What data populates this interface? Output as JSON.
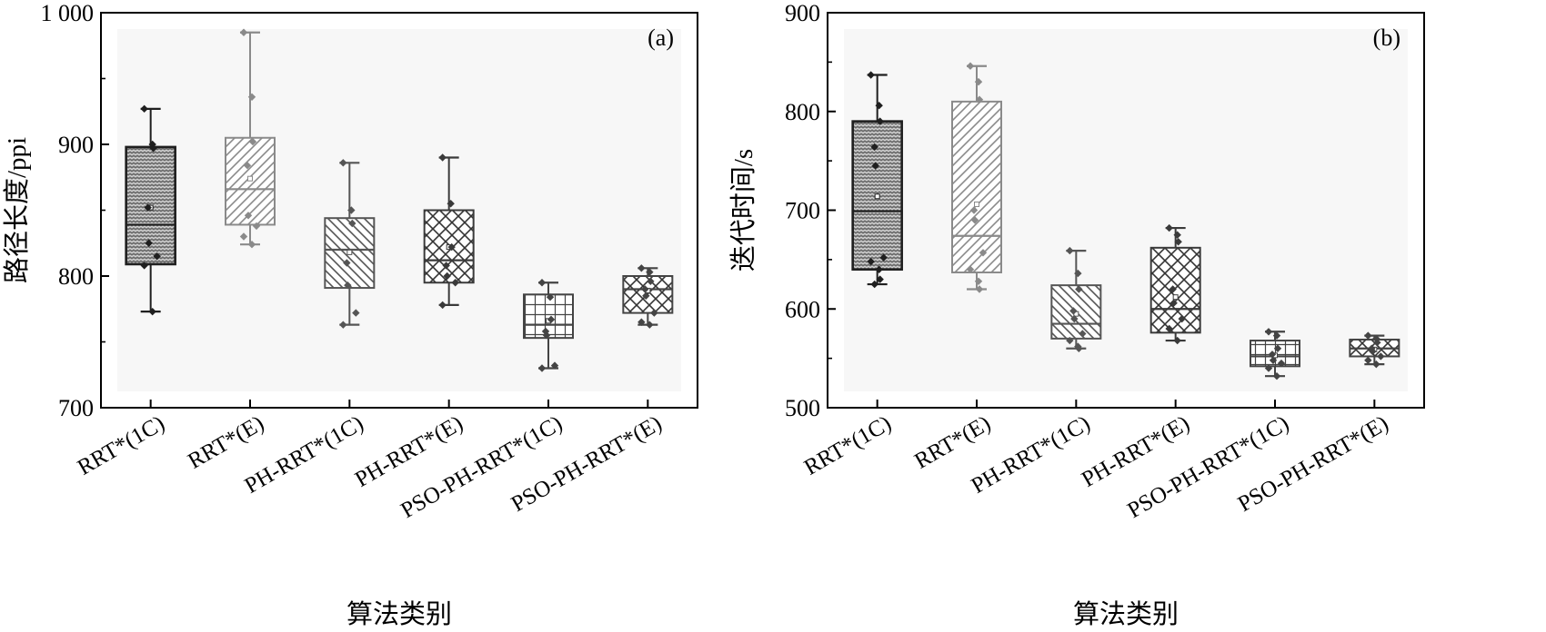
{
  "chart_data": [
    {
      "type": "box",
      "panel_label": "(a)",
      "xlabel": "算法类别",
      "ylabel": "路径长度/ppi",
      "ylim": [
        700,
        1000
      ],
      "yticks": [
        700,
        800,
        900,
        1000
      ],
      "ytick_labels": [
        "700",
        "800",
        "900",
        "1 000"
      ],
      "categories": [
        "RRT*(1C)",
        "RRT*(E)",
        "PH-RRT*(1C)",
        "PH-RRT*(E)",
        "PSO-PH-RRT*(1C)",
        "PSO-PH-RRT*(E)"
      ],
      "boxes": [
        {
          "whisker_low": 773,
          "q1": 809,
          "median": 839,
          "mean": 852,
          "q3": 898,
          "whisker_high": 927,
          "points": [
            927,
            900,
            897,
            852,
            825,
            815,
            808,
            773
          ],
          "pattern": "dots",
          "color": "#1f1f1f",
          "shade": true
        },
        {
          "whisker_low": 824,
          "q1": 839,
          "median": 866,
          "mean": 874,
          "q3": 905,
          "whisker_high": 985,
          "points": [
            985,
            936,
            902,
            884,
            846,
            838,
            830,
            824
          ],
          "pattern": "diag",
          "color": "#8a8a8a",
          "shade": false
        },
        {
          "whisker_low": 763,
          "q1": 791,
          "median": 820,
          "mean": 818,
          "q3": 844,
          "whisker_high": 886,
          "points": [
            886,
            850,
            840,
            810,
            793,
            772,
            763
          ],
          "pattern": "backdiag",
          "color": "#555555",
          "shade": false
        },
        {
          "whisker_low": 778,
          "q1": 795,
          "median": 812,
          "mean": 822,
          "q3": 850,
          "whisker_high": 890,
          "points": [
            890,
            855,
            822,
            808,
            800,
            795,
            778
          ],
          "pattern": "cross",
          "color": "#3a3a3a",
          "shade": false
        },
        {
          "whisker_low": 730,
          "q1": 753,
          "median": 763,
          "mean": 766,
          "q3": 786,
          "whisker_high": 795,
          "points": [
            795,
            784,
            767,
            758,
            755,
            732,
            730
          ],
          "pattern": "grid",
          "color": "#444444",
          "shade": false
        },
        {
          "whisker_low": 763,
          "q1": 772,
          "median": 790,
          "mean": 789,
          "q3": 800,
          "whisker_high": 806,
          "points": [
            806,
            803,
            796,
            790,
            785,
            772,
            765,
            763
          ],
          "pattern": "cross",
          "color": "#444444",
          "shade": false
        }
      ]
    },
    {
      "type": "box",
      "panel_label": "(b)",
      "xlabel": "算法类别",
      "ylabel": "迭代时间/s",
      "ylim": [
        500,
        900
      ],
      "yticks": [
        500,
        600,
        700,
        800,
        900
      ],
      "ytick_labels": [
        "500",
        "600",
        "700",
        "800",
        "900"
      ],
      "categories": [
        "RRT*(1C)",
        "RRT*(E)",
        "PH-RRT*(1C)",
        "PH-RRT*(E)",
        "PSO-PH-RRT*(1C)",
        "PSO-PH-RRT*(E)"
      ],
      "boxes": [
        {
          "whisker_low": 625,
          "q1": 640,
          "median": 699,
          "mean": 714,
          "q3": 790,
          "whisker_high": 837,
          "points": [
            837,
            806,
            790,
            764,
            745,
            652,
            648,
            640,
            630,
            625
          ],
          "pattern": "dots",
          "color": "#1f1f1f",
          "shade": true
        },
        {
          "whisker_low": 620,
          "q1": 637,
          "median": 674,
          "mean": 706,
          "q3": 810,
          "whisker_high": 846,
          "points": [
            846,
            830,
            812,
            700,
            690,
            657,
            640,
            628,
            620
          ],
          "pattern": "diag",
          "color": "#8a8a8a",
          "shade": false
        },
        {
          "whisker_low": 560,
          "q1": 570,
          "median": 585,
          "mean": 595,
          "q3": 624,
          "whisker_high": 659,
          "points": [
            659,
            636,
            620,
            598,
            590,
            575,
            568,
            562,
            560
          ],
          "pattern": "backdiag",
          "color": "#555555",
          "shade": false
        },
        {
          "whisker_low": 568,
          "q1": 576,
          "median": 600,
          "mean": 612,
          "q3": 662,
          "whisker_high": 682,
          "points": [
            682,
            675,
            668,
            620,
            606,
            590,
            580,
            568
          ],
          "pattern": "cross",
          "color": "#3a3a3a",
          "shade": false
        },
        {
          "whisker_low": 532,
          "q1": 542,
          "median": 552,
          "mean": 553,
          "q3": 568,
          "whisker_high": 577,
          "points": [
            577,
            573,
            560,
            554,
            548,
            545,
            540,
            532
          ],
          "pattern": "grid",
          "color": "#444444",
          "shade": false
        },
        {
          "whisker_low": 544,
          "q1": 552,
          "median": 560,
          "mean": 559,
          "q3": 569,
          "whisker_high": 573,
          "points": [
            573,
            570,
            566,
            560,
            557,
            552,
            548,
            544
          ],
          "pattern": "cross",
          "color": "#444444",
          "shade": false
        }
      ]
    }
  ]
}
